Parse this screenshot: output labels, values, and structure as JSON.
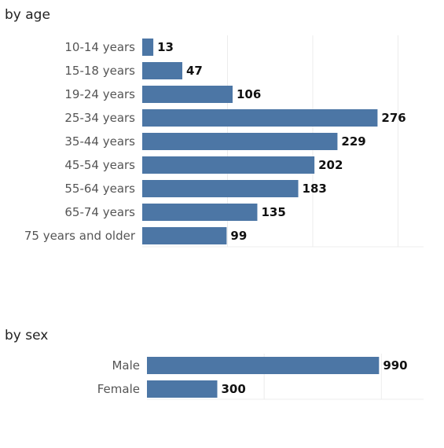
{
  "chart_data": [
    {
      "type": "bar",
      "orientation": "horizontal",
      "title": "by age",
      "categories": [
        "10-14 years",
        "15-18 years",
        "19-24 years",
        "25-34 years",
        "35-44 years",
        "45-54 years",
        "55-64 years",
        "65-74 years",
        "75 years and older"
      ],
      "values": [
        13,
        47,
        106,
        276,
        229,
        202,
        183,
        135,
        99
      ],
      "xlim": [
        0,
        330
      ],
      "grid": true,
      "gridlines": [
        100,
        200,
        300
      ],
      "data_labels": true,
      "bar_color": "#4c76a5"
    },
    {
      "type": "bar",
      "orientation": "horizontal",
      "title": "by sex",
      "categories": [
        "Male",
        "Female"
      ],
      "values": [
        990,
        300
      ],
      "xlim": [
        0,
        1180
      ],
      "grid": true,
      "gridlines": [
        500,
        1000
      ],
      "data_labels": true,
      "bar_color": "#4c76a5"
    }
  ]
}
